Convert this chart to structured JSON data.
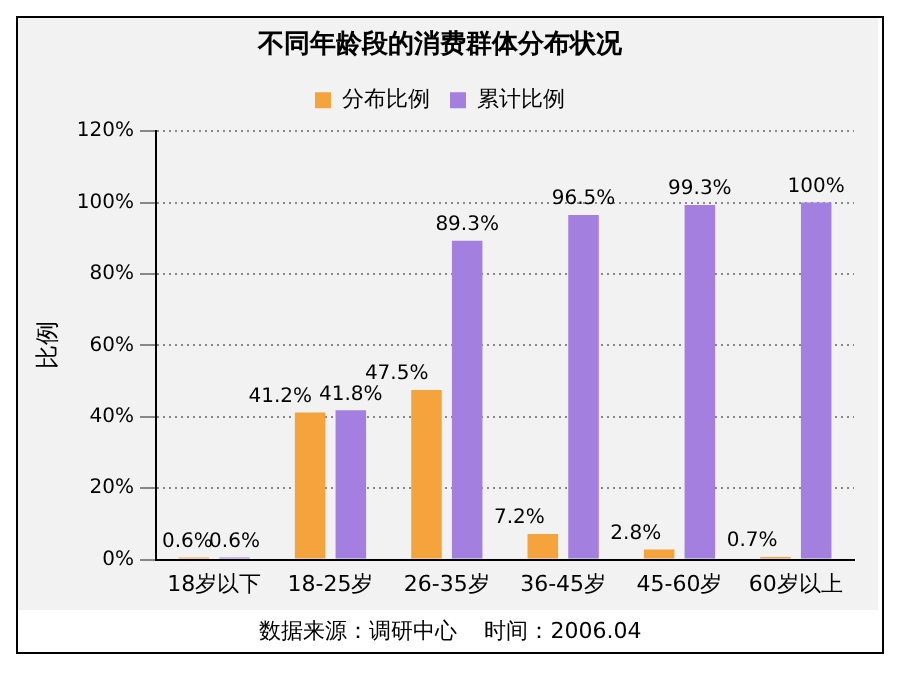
{
  "chart_data": {
    "type": "bar",
    "title": "不同年龄段的消费群体分布状况",
    "ylabel": "比例",
    "categories": [
      "18岁以下",
      "18-25岁",
      "26-35岁",
      "36-45岁",
      "45-60岁",
      "60岁以上"
    ],
    "series": [
      {
        "name": "分布比例",
        "color": "#f5a33c",
        "values": [
          0.6,
          41.2,
          47.5,
          7.2,
          2.8,
          0.7
        ],
        "value_labels": [
          "0.6%",
          "41.2%",
          "47.5%",
          "7.2%",
          "2.8%",
          "0.7%"
        ]
      },
      {
        "name": "累计比例",
        "color": "#a37fe0",
        "values": [
          0.6,
          41.8,
          89.3,
          96.5,
          99.3,
          100
        ],
        "value_labels": [
          "0.6%",
          "41.8%",
          "89.3%",
          "96.5%",
          "99.3%",
          "100%"
        ]
      }
    ],
    "ylim": [
      0,
      120
    ],
    "yticks": [
      {
        "value": 0,
        "label": "0%"
      },
      {
        "value": 20,
        "label": "20%"
      },
      {
        "value": 40,
        "label": "40%"
      },
      {
        "value": 60,
        "label": "60%"
      },
      {
        "value": 80,
        "label": "80%"
      },
      {
        "value": 100,
        "label": "100%"
      },
      {
        "value": 120,
        "label": "120%"
      }
    ],
    "grid": "y",
    "legend": "top",
    "annotations": [
      "数据来源：调研中心    时间：2006.04"
    ]
  }
}
